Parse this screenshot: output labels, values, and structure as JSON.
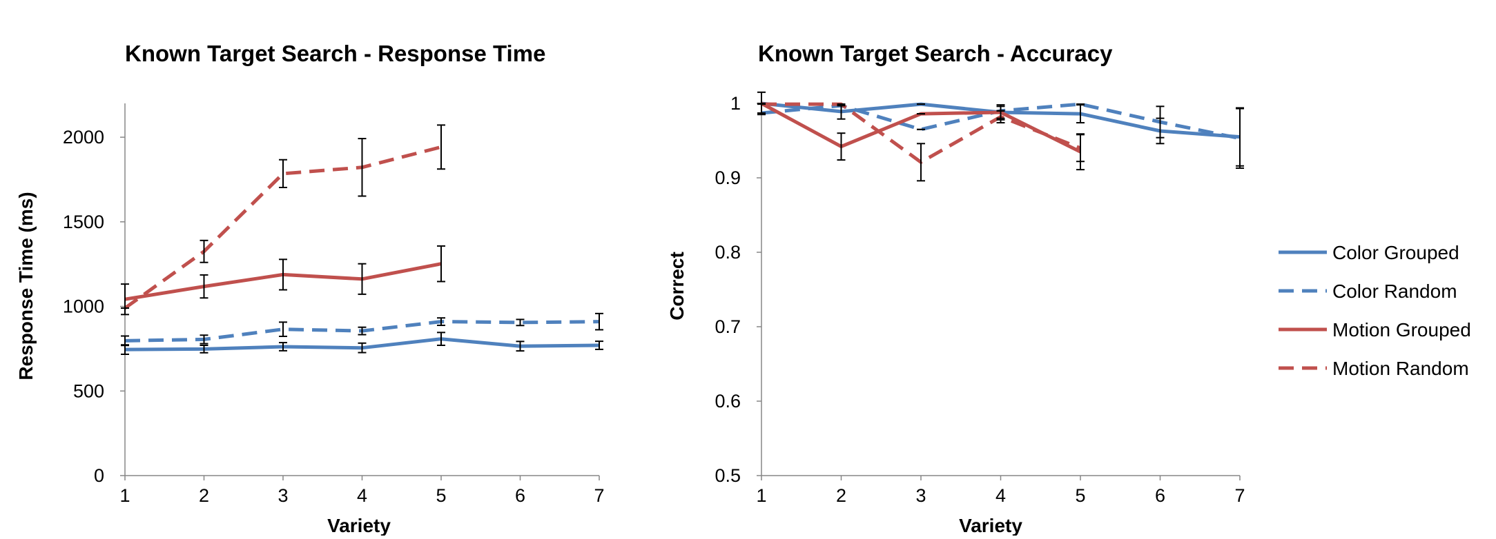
{
  "chart_data": [
    {
      "type": "line",
      "title": "Known Target Search - Response Time",
      "xlabel": "Variety",
      "ylabel": "Response Time (ms)",
      "x": [
        1,
        2,
        3,
        4,
        5,
        6,
        7
      ],
      "xlim": [
        1,
        7
      ],
      "ylim": [
        0,
        2200
      ],
      "yticks": [
        0,
        500,
        1000,
        1500,
        2000
      ],
      "grid": false,
      "series": [
        {
          "name": "Color Grouped",
          "color": "#4f81bd",
          "dash": "solid",
          "x": [
            1,
            2,
            3,
            4,
            5,
            6,
            7
          ],
          "values": [
            745,
            748,
            762,
            755,
            808,
            765,
            770
          ],
          "errors": [
            28,
            22,
            24,
            28,
            38,
            28,
            24
          ]
        },
        {
          "name": "Color Random",
          "color": "#4f81bd",
          "dash": "dashed",
          "x": [
            1,
            2,
            3,
            4,
            5,
            6,
            7
          ],
          "values": [
            797,
            805,
            865,
            855,
            910,
            905,
            910
          ],
          "errors": [
            28,
            25,
            42,
            22,
            22,
            18,
            48
          ]
        },
        {
          "name": "Motion Grouped",
          "color": "#c0504d",
          "dash": "solid",
          "x": [
            1,
            2,
            3,
            4,
            5
          ],
          "values": [
            1042,
            1118,
            1188,
            1162,
            1252
          ],
          "errors": [
            90,
            68,
            90,
            90,
            105
          ]
        },
        {
          "name": "Motion Random",
          "color": "#c0504d",
          "dash": "dashed",
          "x": [
            1,
            2,
            3,
            4,
            5
          ],
          "values": [
            990,
            1325,
            1785,
            1822,
            1942
          ],
          "errors": [
            0,
            65,
            82,
            170,
            130
          ]
        }
      ]
    },
    {
      "type": "line",
      "title": "Known Target Search - Accuracy",
      "xlabel": "Variety",
      "ylabel": "Correct",
      "x": [
        1,
        2,
        3,
        4,
        5,
        6,
        7
      ],
      "xlim": [
        1,
        7
      ],
      "ylim": [
        0.5,
        1
      ],
      "yticks": [
        0.5,
        0.6,
        0.7,
        0.8,
        0.9,
        1
      ],
      "grid": false,
      "legend_position": "right",
      "series": [
        {
          "name": "Color Grouped",
          "color": "#4f81bd",
          "dash": "solid",
          "x": [
            1,
            2,
            3,
            4,
            5,
            6,
            7
          ],
          "values": [
            1.0,
            0.989,
            0.999,
            0.988,
            0.986,
            0.963,
            0.955
          ],
          "errors": [
            0.015,
            0.01,
            0.0,
            0.008,
            0.012,
            0.017,
            0.039
          ]
        },
        {
          "name": "Color Random",
          "color": "#4f81bd",
          "dash": "dashed",
          "x": [
            1,
            2,
            3,
            4,
            5,
            6,
            7
          ],
          "values": [
            0.987,
            0.997,
            0.965,
            0.99,
            0.999,
            0.975,
            0.953
          ],
          "errors": [
            0.0,
            0.0,
            0.0,
            0.0,
            0.0,
            0.021,
            0.04
          ]
        },
        {
          "name": "Motion Grouped",
          "color": "#c0504d",
          "dash": "solid",
          "x": [
            1,
            2,
            3,
            4,
            5
          ],
          "values": [
            1.0,
            0.942,
            0.986,
            0.988,
            0.935
          ],
          "errors": [
            0.0,
            0.018,
            0.0,
            0.01,
            0.024
          ]
        },
        {
          "name": "Motion Random",
          "color": "#c0504d",
          "dash": "dashed",
          "x": [
            1,
            2,
            3,
            4,
            5
          ],
          "values": [
            0.999,
            0.999,
            0.921,
            0.982,
            0.94
          ],
          "errors": [
            0.0,
            0.0,
            0.025,
            0.008,
            0.018
          ]
        }
      ]
    }
  ]
}
